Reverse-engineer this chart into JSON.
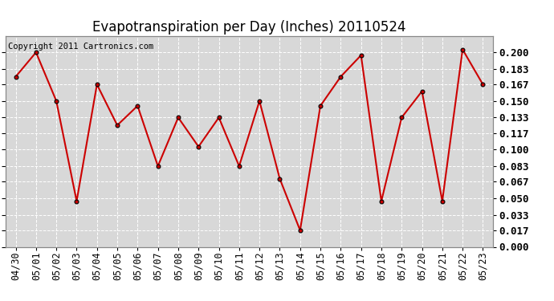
{
  "title": "Evapotranspiration per Day (Inches) 20110524",
  "copyright": "Copyright 2011 Cartronics.com",
  "dates": [
    "04/30",
    "05/01",
    "05/02",
    "05/03",
    "05/04",
    "05/05",
    "05/06",
    "05/07",
    "05/08",
    "05/09",
    "05/10",
    "05/11",
    "05/12",
    "05/13",
    "05/14",
    "05/15",
    "05/16",
    "05/17",
    "05/18",
    "05/19",
    "05/20",
    "05/21",
    "05/22",
    "05/23"
  ],
  "values": [
    0.175,
    0.2,
    0.15,
    0.047,
    0.167,
    0.125,
    0.145,
    0.083,
    0.133,
    0.103,
    0.133,
    0.083,
    0.15,
    0.07,
    0.017,
    0.145,
    0.175,
    0.197,
    0.047,
    0.133,
    0.16,
    0.047,
    0.203,
    0.167
  ],
  "ylim": [
    0.0,
    0.2167
  ],
  "yticks": [
    0.0,
    0.017,
    0.033,
    0.05,
    0.067,
    0.083,
    0.1,
    0.117,
    0.133,
    0.15,
    0.167,
    0.183,
    0.2
  ],
  "line_color": "#cc0000",
  "marker_edge_color": "#000000",
  "marker_face_color": "#cc0000",
  "marker_size": 3.5,
  "bg_color": "#d8d8d8",
  "grid_color": "#ffffff",
  "title_fontsize": 12,
  "tick_fontsize": 8.5,
  "copyright_fontsize": 7.5,
  "ytick_fontsize": 9
}
